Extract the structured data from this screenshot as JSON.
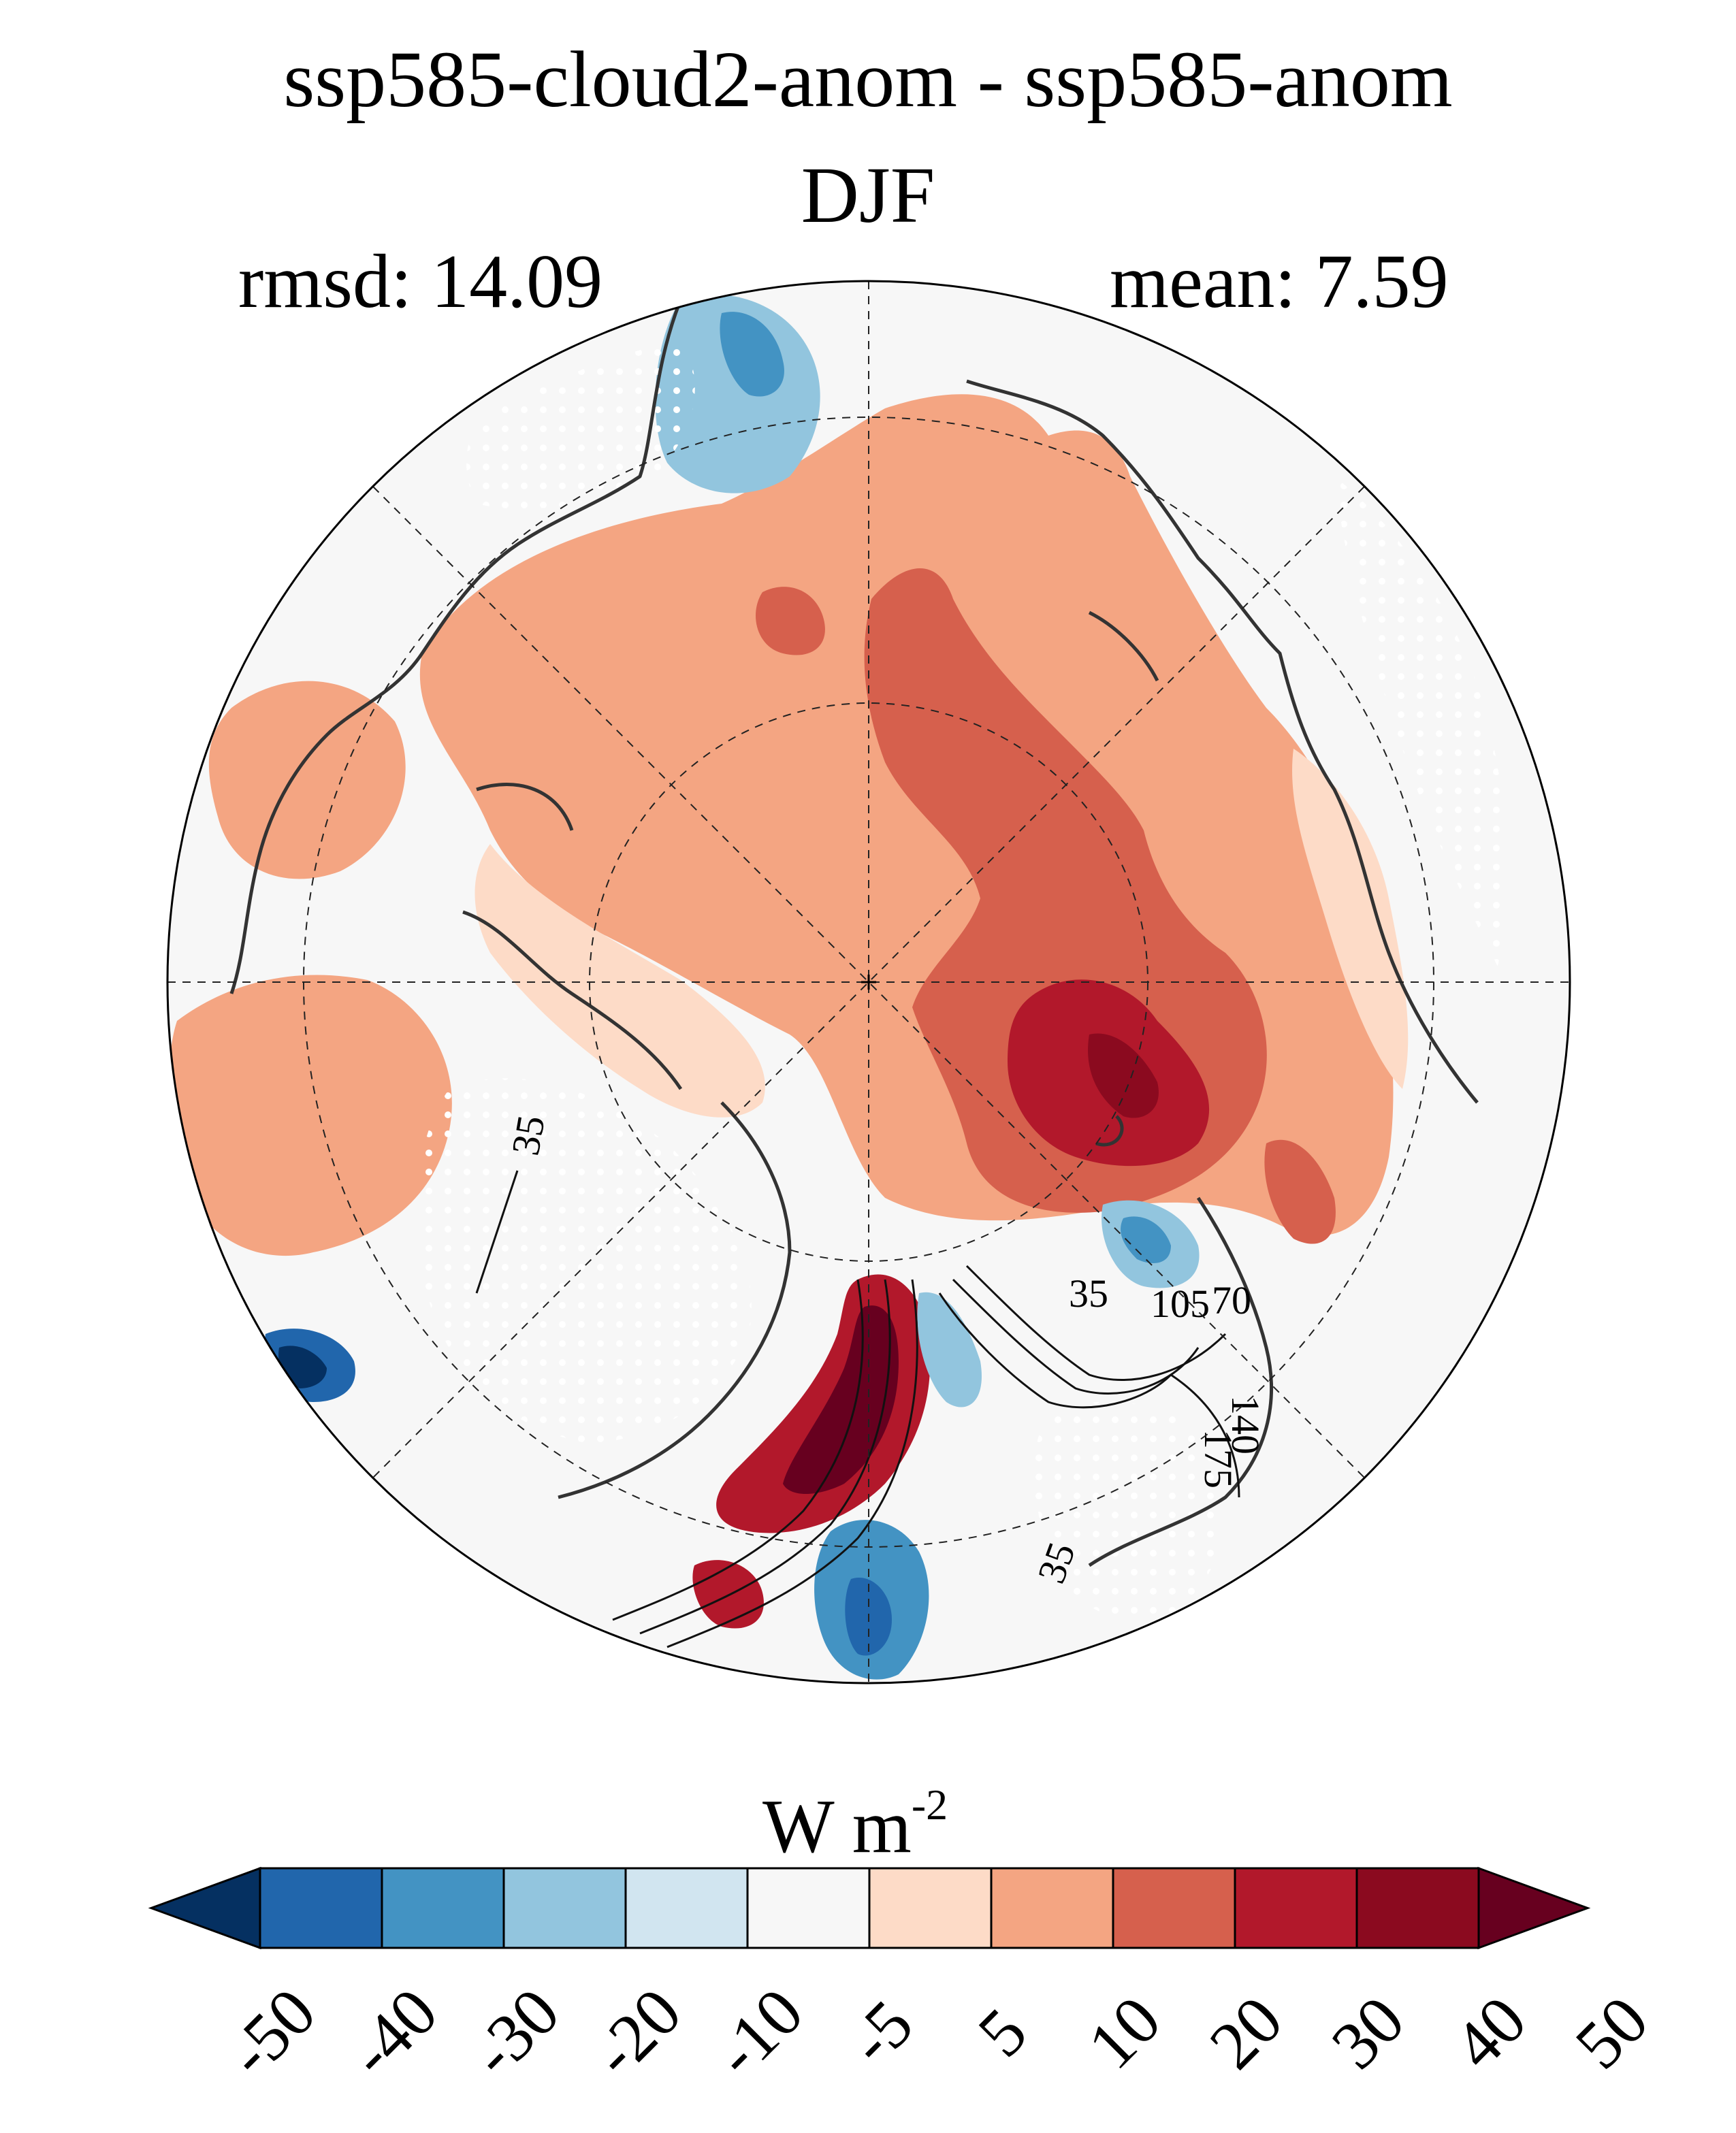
{
  "header": {
    "title": "ssp585-cloud2-anom - ssp585-anom",
    "season": "DJF",
    "rmsd_label": "rmsd: 14.09",
    "mean_label": "mean: 7.59"
  },
  "map": {
    "projection": "north polar stereographic",
    "graticule": "dashed",
    "stippling": "white dots over insignificant areas",
    "contour_labels": [
      "35",
      "35",
      "35",
      "70",
      "105",
      "140",
      "175"
    ],
    "palette_note": "diverging blue-white-red"
  },
  "colorbar": {
    "units_main": "W m",
    "units_exp": "-2",
    "extend": "both",
    "tick_labels": [
      "-50",
      "-40",
      "-30",
      "-20",
      "-10",
      "-5",
      "5",
      "10",
      "20",
      "30",
      "40",
      "50"
    ],
    "colors": [
      "#053061",
      "#2166ac",
      "#4393c3",
      "#92c5de",
      "#d1e5f0",
      "#f7f7f7",
      "#fddbc7",
      "#f4a582",
      "#d6604d",
      "#b2182b",
      "#8b0a1f",
      "#67001f"
    ]
  }
}
